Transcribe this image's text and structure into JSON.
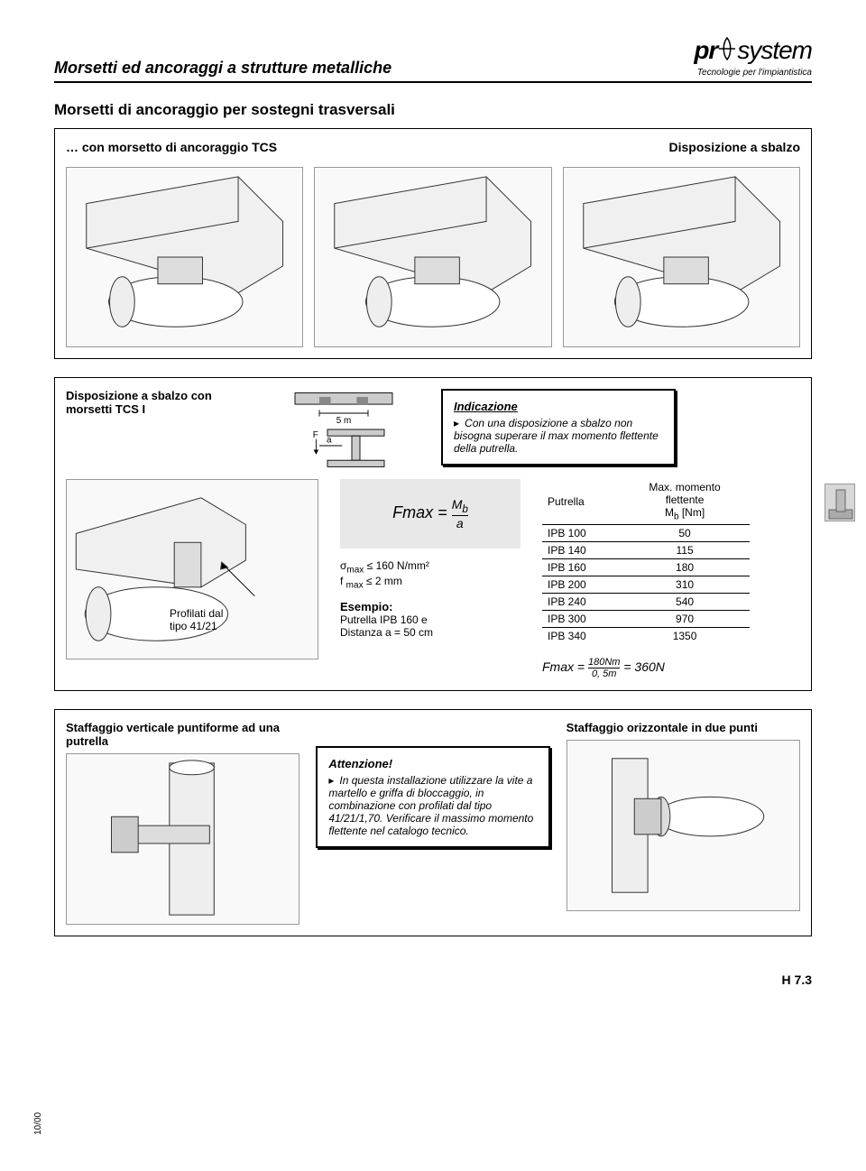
{
  "header": {
    "title": "Morsetti ed ancoraggi a strutture metalliche",
    "logo_main_pr": "pr",
    "logo_main_system": "system",
    "logo_sub": "Tecnologie per l'impiantistica"
  },
  "section_title": "Morsetti di ancoraggio per sostegni trasversali",
  "box1": {
    "left_label": "… con morsetto di ancoraggio TCS",
    "right_label": "Disposizione a sbalzo"
  },
  "box2": {
    "left_label": "Disposizione a sbalzo con morsetti TCS I",
    "beam": {
      "dim_label": "5 m",
      "force_label": "F",
      "dist_label": "a"
    },
    "indication": {
      "title": "Indicazione",
      "text": "Con una disposizione a sbalzo non bisogna superare il max momento flettente della putrella."
    },
    "profile_label_line1": "Profilati dal",
    "profile_label_line2": "tipo 41/21",
    "formula": {
      "lhs": "Fmax",
      "eq": "=",
      "num": "M",
      "num_sub": "b",
      "den": "a"
    },
    "constraints": {
      "sigma": "σ",
      "sigma_sub": "max",
      "sigma_val": " ≤ 160 N/mm²",
      "f": "f ",
      "f_sub": "max",
      "f_val": " ≤ 2 mm"
    },
    "example": {
      "label": "Esempio:",
      "line1": "Putrella IPB 160 e",
      "line2": "Distanza a = 50 cm"
    },
    "table": {
      "col1_header": "Putrella",
      "col2_header_l1": "Max. momento",
      "col2_header_l2": "flettente",
      "col2_header_l3_a": "M",
      "col2_header_l3_sub": "b",
      "col2_header_l3_b": "   [Nm]",
      "rows": [
        {
          "putrella": "IPB 100",
          "mb": "50"
        },
        {
          "putrella": "IPB 140",
          "mb": "115"
        },
        {
          "putrella": "IPB 160",
          "mb": "180"
        },
        {
          "putrella": "IPB 200",
          "mb": "310"
        },
        {
          "putrella": "IPB 240",
          "mb": "540"
        },
        {
          "putrella": "IPB 300",
          "mb": "970"
        },
        {
          "putrella": "IPB 340",
          "mb": "1350"
        }
      ]
    },
    "result": {
      "lhs": "Fmax",
      "eq1": " = ",
      "num": "180Nm",
      "den": "0, 5m",
      "eq2": " = ",
      "rhs": "360N"
    }
  },
  "box3": {
    "col1_title": "Staffaggio verticale puntiforme ad una putrella",
    "attention_title": "Attenzione!",
    "attention_text": "In questa installazione utilizzare la vite a martello e griffa di bloccaggio, in combinazione con profilati dal tipo 41/21/1,70. Verificare il massimo momento flettente nel catalogo tecnico.",
    "col3_title": "Staffaggio orizzontale in due punti"
  },
  "footer": {
    "left": "10/00",
    "right": "H 7.3"
  },
  "colors": {
    "text": "#000000",
    "bg": "#ffffff",
    "formula_bg": "#e8e8e8",
    "drawing_border": "#999999",
    "drawing_bg": "#f9f9f9",
    "thumb_bg": "#d8d8d8"
  }
}
